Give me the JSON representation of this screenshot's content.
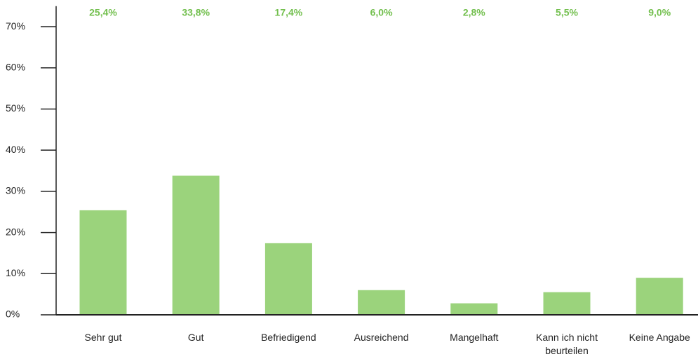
{
  "chart_data": {
    "type": "bar",
    "categories": [
      "Sehr gut",
      "Gut",
      "Befriedigend",
      "Ausreichend",
      "Mangelhaft",
      "Kann ich nicht beurteilen",
      "Keine Angabe"
    ],
    "values": [
      25.4,
      33.8,
      17.4,
      6.0,
      2.8,
      5.5,
      9.0
    ],
    "value_labels": [
      "25,4%",
      "33,8%",
      "17,4%",
      "6,0%",
      "2,8%",
      "5,5%",
      "9,0%"
    ],
    "color": "#9bd37c",
    "label_color": "#72bf4d",
    "ylim": [
      0,
      75
    ],
    "yticks": [
      {
        "value": 0,
        "label": "0%"
      },
      {
        "value": 10,
        "label": "10%"
      },
      {
        "value": 20,
        "label": "20%"
      },
      {
        "value": 30,
        "label": "30%"
      },
      {
        "value": 40,
        "label": "40%"
      },
      {
        "value": 50,
        "label": "50%"
      },
      {
        "value": 60,
        "label": "60%"
      },
      {
        "value": 70,
        "label": "70%"
      }
    ]
  }
}
